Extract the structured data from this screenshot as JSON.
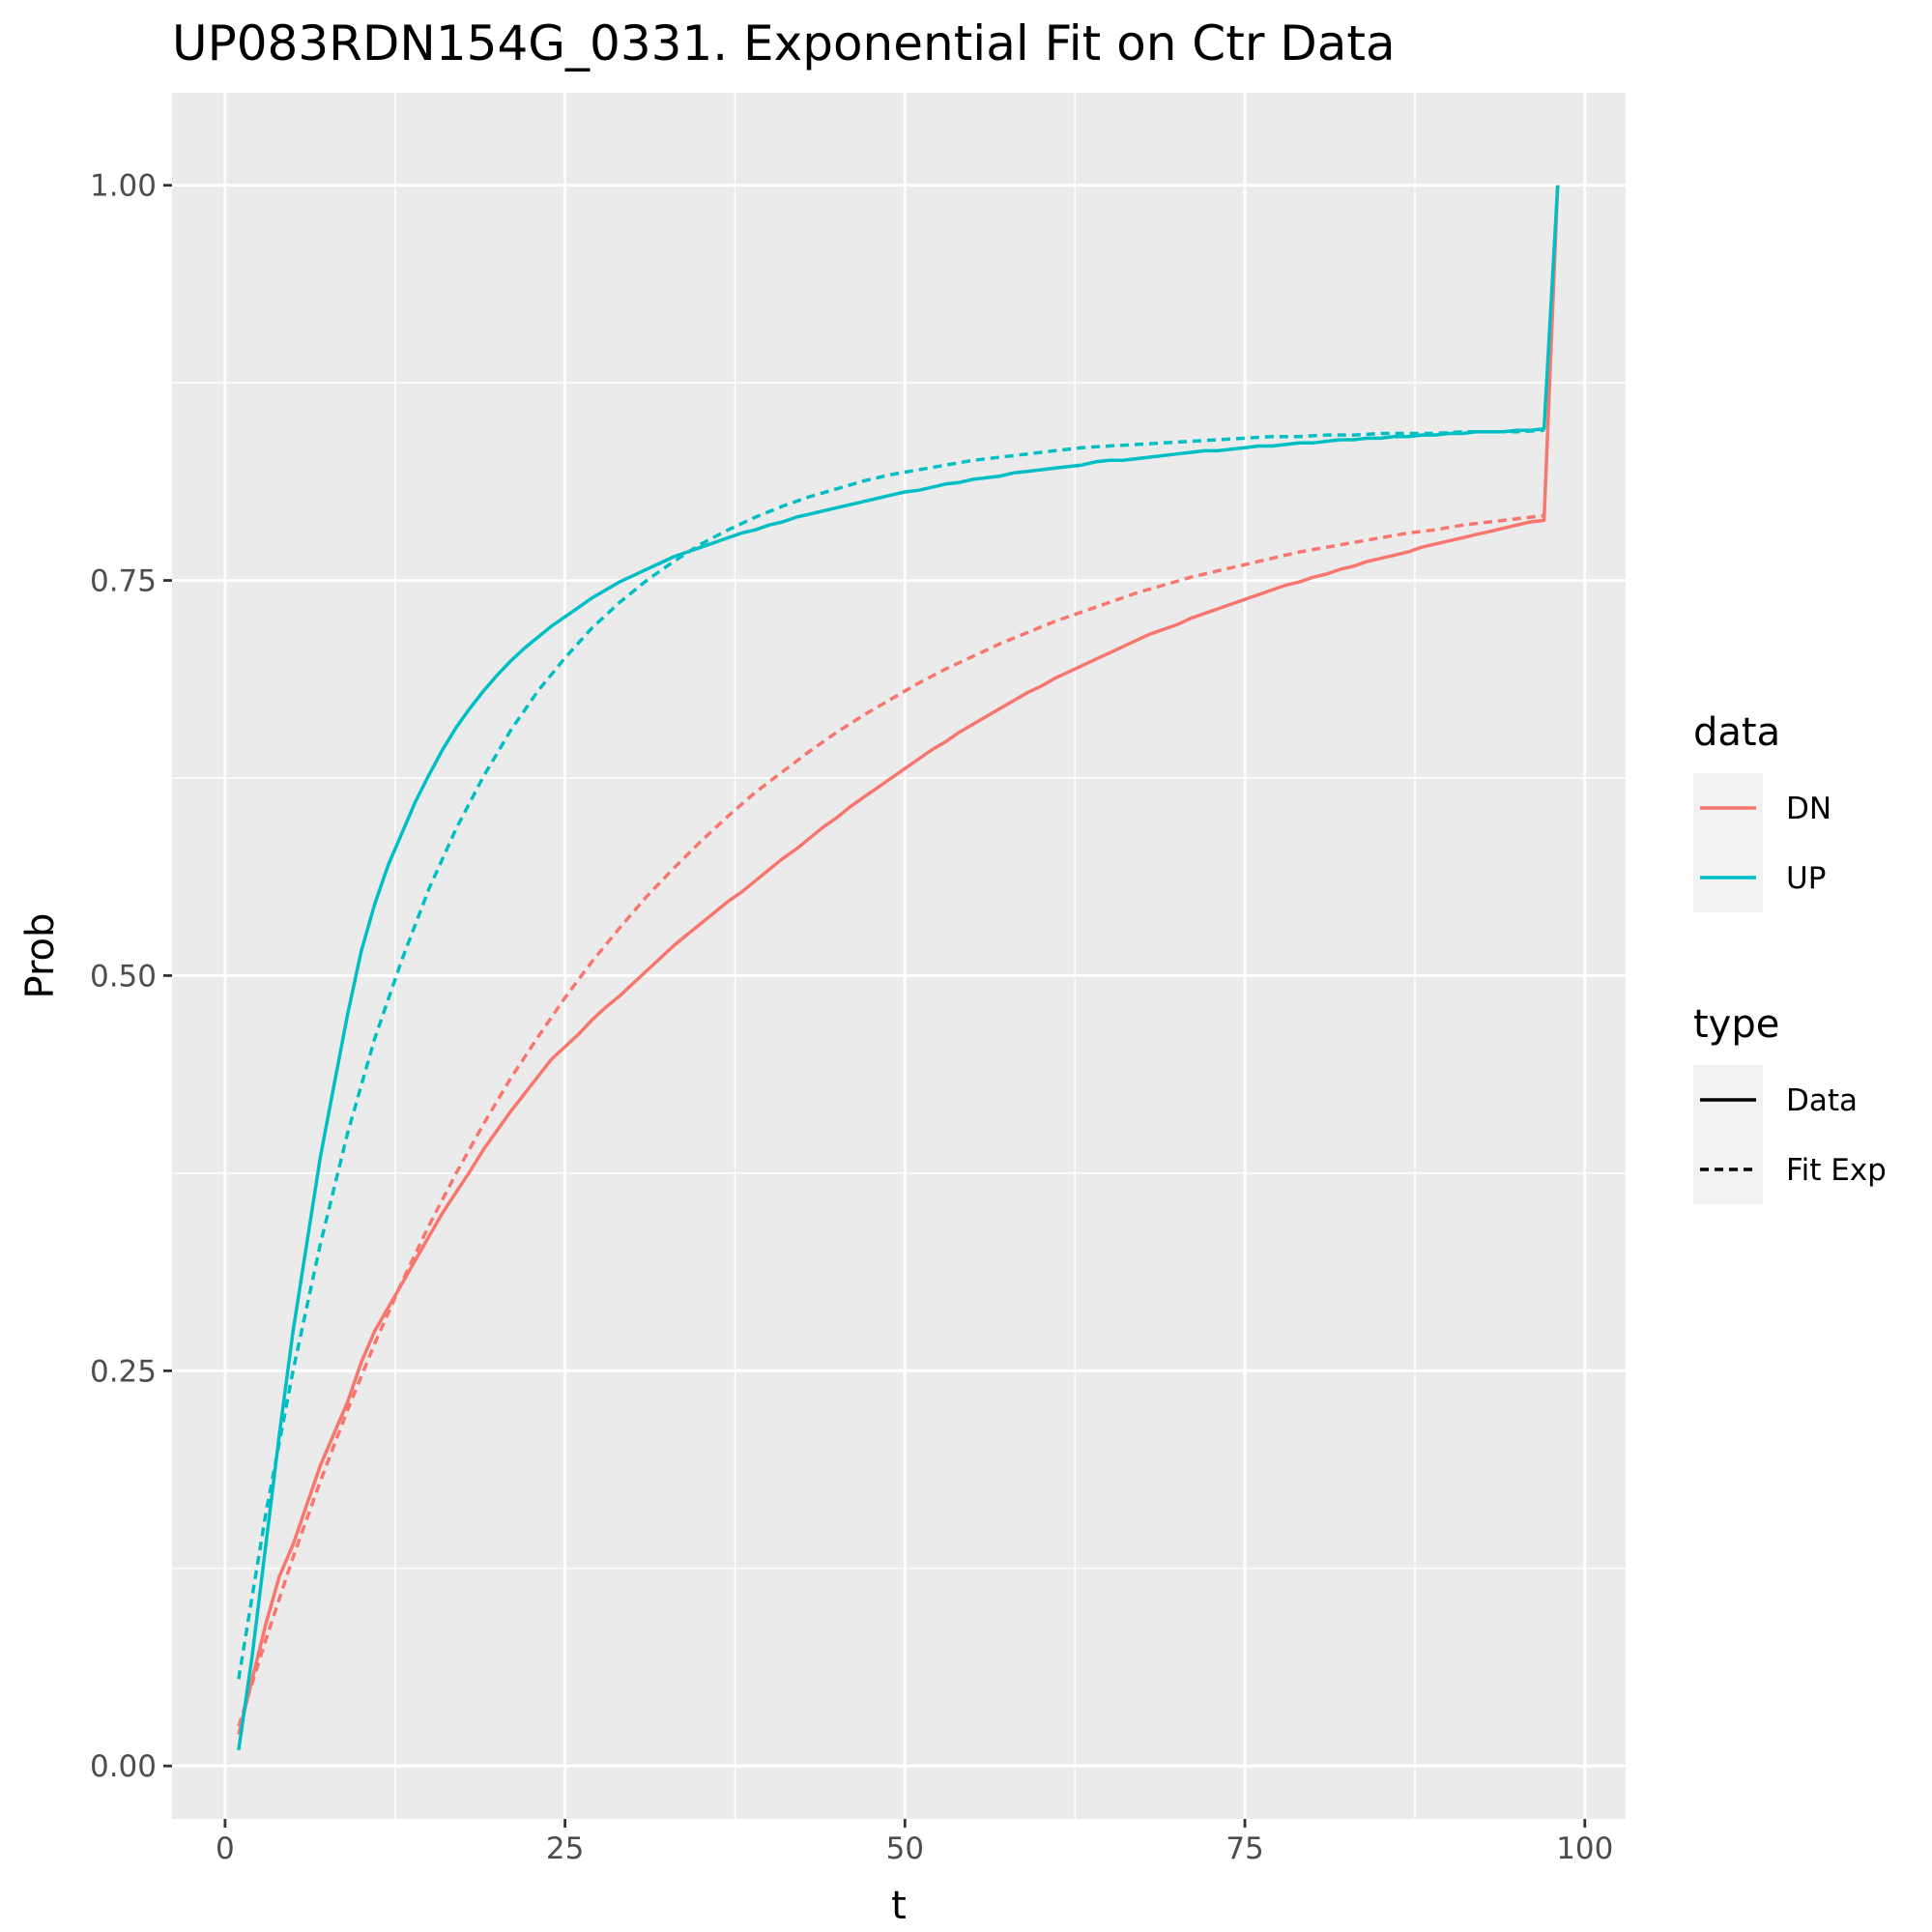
{
  "chart_data": {
    "type": "line",
    "title": "UP083RDN154G_0331. Exponential Fit on Ctr Data",
    "xlabel": "t",
    "ylabel": "Prob",
    "xlim": [
      -3.9,
      103
    ],
    "ylim": [
      -0.0335,
      1.0585
    ],
    "x_ticks": [
      0,
      25,
      50,
      75,
      100
    ],
    "x_tick_labels": [
      "0",
      "25",
      "50",
      "75",
      "100"
    ],
    "y_ticks": [
      0,
      0.25,
      0.5,
      0.75,
      1
    ],
    "y_tick_labels": [
      "0.00",
      "0.25",
      "0.50",
      "0.75",
      "1.00"
    ],
    "grid": true,
    "legend_position": "right",
    "legend": {
      "data": {
        "title": "data",
        "entries": [
          {
            "label": "DN",
            "color": "#F8766D"
          },
          {
            "label": "UP",
            "color": "#00BFC4"
          }
        ]
      },
      "type": {
        "title": "type",
        "entries": [
          {
            "label": "Data",
            "linetype": "solid"
          },
          {
            "label": "Fit Exp",
            "linetype": "dashed"
          }
        ]
      }
    },
    "series": [
      {
        "data": "DN",
        "type": "Data",
        "color": "#F8766D",
        "linetype": "solid",
        "points": [
          [
            1,
            0.02
          ],
          [
            2,
            0.055
          ],
          [
            3,
            0.09
          ],
          [
            4,
            0.12
          ],
          [
            5,
            0.14
          ],
          [
            6,
            0.165
          ],
          [
            7,
            0.19
          ],
          [
            8,
            0.21
          ],
          [
            9,
            0.23
          ],
          [
            10,
            0.255
          ],
          [
            11,
            0.275
          ],
          [
            12,
            0.29
          ],
          [
            13,
            0.305
          ],
          [
            14,
            0.32
          ],
          [
            15,
            0.335
          ],
          [
            16,
            0.35
          ],
          [
            17,
            0.363
          ],
          [
            18,
            0.376
          ],
          [
            19,
            0.39
          ],
          [
            20,
            0.402
          ],
          [
            21,
            0.414
          ],
          [
            22,
            0.425
          ],
          [
            23,
            0.436
          ],
          [
            24,
            0.447
          ],
          [
            25,
            0.455
          ],
          [
            26,
            0.463
          ],
          [
            27,
            0.472
          ],
          [
            28,
            0.48
          ],
          [
            29,
            0.487
          ],
          [
            30,
            0.495
          ],
          [
            31,
            0.503
          ],
          [
            32,
            0.511
          ],
          [
            33,
            0.519
          ],
          [
            34,
            0.526
          ],
          [
            35,
            0.533
          ],
          [
            36,
            0.54
          ],
          [
            37,
            0.547
          ],
          [
            38,
            0.553
          ],
          [
            39,
            0.56
          ],
          [
            40,
            0.567
          ],
          [
            41,
            0.574
          ],
          [
            42,
            0.58
          ],
          [
            43,
            0.587
          ],
          [
            44,
            0.594
          ],
          [
            45,
            0.6
          ],
          [
            46,
            0.607
          ],
          [
            47,
            0.613
          ],
          [
            48,
            0.619
          ],
          [
            49,
            0.625
          ],
          [
            50,
            0.631
          ],
          [
            51,
            0.637
          ],
          [
            52,
            0.643
          ],
          [
            53,
            0.648
          ],
          [
            54,
            0.654
          ],
          [
            55,
            0.659
          ],
          [
            56,
            0.664
          ],
          [
            57,
            0.669
          ],
          [
            58,
            0.674
          ],
          [
            59,
            0.679
          ],
          [
            60,
            0.683
          ],
          [
            61,
            0.688
          ],
          [
            62,
            0.692
          ],
          [
            63,
            0.696
          ],
          [
            64,
            0.7
          ],
          [
            65,
            0.704
          ],
          [
            66,
            0.708
          ],
          [
            67,
            0.712
          ],
          [
            68,
            0.716
          ],
          [
            69,
            0.719
          ],
          [
            70,
            0.722
          ],
          [
            71,
            0.726
          ],
          [
            72,
            0.729
          ],
          [
            73,
            0.732
          ],
          [
            74,
            0.735
          ],
          [
            75,
            0.738
          ],
          [
            76,
            0.741
          ],
          [
            77,
            0.744
          ],
          [
            78,
            0.747
          ],
          [
            79,
            0.749
          ],
          [
            80,
            0.752
          ],
          [
            81,
            0.754
          ],
          [
            82,
            0.757
          ],
          [
            83,
            0.759
          ],
          [
            84,
            0.762
          ],
          [
            85,
            0.764
          ],
          [
            86,
            0.766
          ],
          [
            87,
            0.768
          ],
          [
            88,
            0.771
          ],
          [
            89,
            0.773
          ],
          [
            90,
            0.775
          ],
          [
            91,
            0.777
          ],
          [
            92,
            0.779
          ],
          [
            93,
            0.781
          ],
          [
            94,
            0.783
          ],
          [
            95,
            0.785
          ],
          [
            96,
            0.787
          ],
          [
            97,
            0.788
          ],
          [
            98,
            1.0
          ]
        ]
      },
      {
        "data": "DN",
        "type": "Fit Exp",
        "color": "#F8766D",
        "linetype": "dashed",
        "points": [
          [
            1,
            0.025
          ],
          [
            3,
            0.08
          ],
          [
            5,
            0.132
          ],
          [
            7,
            0.18
          ],
          [
            9,
            0.225
          ],
          [
            11,
            0.267
          ],
          [
            13,
            0.306
          ],
          [
            15,
            0.342
          ],
          [
            17,
            0.375
          ],
          [
            19,
            0.406
          ],
          [
            21,
            0.435
          ],
          [
            23,
            0.461
          ],
          [
            25,
            0.486
          ],
          [
            27,
            0.509
          ],
          [
            29,
            0.53
          ],
          [
            31,
            0.55
          ],
          [
            33,
            0.568
          ],
          [
            35,
            0.585
          ],
          [
            37,
            0.601
          ],
          [
            39,
            0.616
          ],
          [
            41,
            0.629
          ],
          [
            43,
            0.642
          ],
          [
            45,
            0.654
          ],
          [
            47,
            0.665
          ],
          [
            49,
            0.675
          ],
          [
            51,
            0.685
          ],
          [
            53,
            0.694
          ],
          [
            55,
            0.702
          ],
          [
            57,
            0.71
          ],
          [
            59,
            0.717
          ],
          [
            61,
            0.724
          ],
          [
            63,
            0.73
          ],
          [
            65,
            0.736
          ],
          [
            67,
            0.742
          ],
          [
            69,
            0.747
          ],
          [
            71,
            0.752
          ],
          [
            73,
            0.756
          ],
          [
            75,
            0.76
          ],
          [
            77,
            0.764
          ],
          [
            79,
            0.768
          ],
          [
            81,
            0.771
          ],
          [
            83,
            0.774
          ],
          [
            85,
            0.777
          ],
          [
            87,
            0.78
          ],
          [
            89,
            0.782
          ],
          [
            91,
            0.785
          ],
          [
            93,
            0.787
          ],
          [
            95,
            0.789
          ],
          [
            97,
            0.791
          ]
        ]
      },
      {
        "data": "UP",
        "type": "Data",
        "color": "#00BFC4",
        "linetype": "solid",
        "points": [
          [
            1,
            0.01
          ],
          [
            2,
            0.07
          ],
          [
            3,
            0.14
          ],
          [
            4,
            0.21
          ],
          [
            5,
            0.275
          ],
          [
            6,
            0.33
          ],
          [
            7,
            0.385
          ],
          [
            8,
            0.43
          ],
          [
            9,
            0.475
          ],
          [
            10,
            0.515
          ],
          [
            11,
            0.545
          ],
          [
            12,
            0.57
          ],
          [
            13,
            0.59
          ],
          [
            14,
            0.61
          ],
          [
            15,
            0.627
          ],
          [
            16,
            0.643
          ],
          [
            17,
            0.657
          ],
          [
            18,
            0.669
          ],
          [
            19,
            0.68
          ],
          [
            20,
            0.69
          ],
          [
            21,
            0.699
          ],
          [
            22,
            0.707
          ],
          [
            23,
            0.714
          ],
          [
            24,
            0.721
          ],
          [
            25,
            0.727
          ],
          [
            26,
            0.733
          ],
          [
            27,
            0.739
          ],
          [
            28,
            0.744
          ],
          [
            29,
            0.749
          ],
          [
            30,
            0.753
          ],
          [
            31,
            0.757
          ],
          [
            32,
            0.761
          ],
          [
            33,
            0.765
          ],
          [
            34,
            0.768
          ],
          [
            35,
            0.771
          ],
          [
            36,
            0.774
          ],
          [
            37,
            0.777
          ],
          [
            38,
            0.78
          ],
          [
            39,
            0.782
          ],
          [
            40,
            0.785
          ],
          [
            41,
            0.787
          ],
          [
            42,
            0.79
          ],
          [
            43,
            0.792
          ],
          [
            44,
            0.794
          ],
          [
            45,
            0.796
          ],
          [
            46,
            0.798
          ],
          [
            47,
            0.8
          ],
          [
            48,
            0.802
          ],
          [
            49,
            0.804
          ],
          [
            50,
            0.806
          ],
          [
            51,
            0.807
          ],
          [
            52,
            0.809
          ],
          [
            53,
            0.811
          ],
          [
            54,
            0.812
          ],
          [
            55,
            0.814
          ],
          [
            56,
            0.815
          ],
          [
            57,
            0.816
          ],
          [
            58,
            0.818
          ],
          [
            59,
            0.819
          ],
          [
            60,
            0.82
          ],
          [
            61,
            0.821
          ],
          [
            62,
            0.822
          ],
          [
            63,
            0.823
          ],
          [
            64,
            0.825
          ],
          [
            65,
            0.826
          ],
          [
            66,
            0.826
          ],
          [
            67,
            0.827
          ],
          [
            68,
            0.828
          ],
          [
            69,
            0.829
          ],
          [
            70,
            0.83
          ],
          [
            71,
            0.831
          ],
          [
            72,
            0.832
          ],
          [
            73,
            0.832
          ],
          [
            74,
            0.833
          ],
          [
            75,
            0.834
          ],
          [
            76,
            0.835
          ],
          [
            77,
            0.835
          ],
          [
            78,
            0.836
          ],
          [
            79,
            0.837
          ],
          [
            80,
            0.837
          ],
          [
            81,
            0.838
          ],
          [
            82,
            0.839
          ],
          [
            83,
            0.839
          ],
          [
            84,
            0.84
          ],
          [
            85,
            0.84
          ],
          [
            86,
            0.841
          ],
          [
            87,
            0.841
          ],
          [
            88,
            0.842
          ],
          [
            89,
            0.842
          ],
          [
            90,
            0.843
          ],
          [
            91,
            0.843
          ],
          [
            92,
            0.844
          ],
          [
            93,
            0.844
          ],
          [
            94,
            0.844
          ],
          [
            95,
            0.845
          ],
          [
            96,
            0.845
          ],
          [
            97,
            0.846
          ],
          [
            98,
            1.0
          ]
        ]
      },
      {
        "data": "UP",
        "type": "Fit Exp",
        "color": "#00BFC4",
        "linetype": "dashed",
        "points": [
          [
            1,
            0.055
          ],
          [
            3,
            0.16
          ],
          [
            5,
            0.25
          ],
          [
            7,
            0.33
          ],
          [
            9,
            0.4
          ],
          [
            11,
            0.46
          ],
          [
            13,
            0.51
          ],
          [
            15,
            0.555
          ],
          [
            17,
            0.593
          ],
          [
            19,
            0.626
          ],
          [
            21,
            0.655
          ],
          [
            23,
            0.68
          ],
          [
            25,
            0.701
          ],
          [
            27,
            0.72
          ],
          [
            29,
            0.736
          ],
          [
            31,
            0.75
          ],
          [
            33,
            0.762
          ],
          [
            35,
            0.773
          ],
          [
            37,
            0.782
          ],
          [
            39,
            0.79
          ],
          [
            41,
            0.797
          ],
          [
            43,
            0.803
          ],
          [
            45,
            0.808
          ],
          [
            47,
            0.813
          ],
          [
            49,
            0.817
          ],
          [
            51,
            0.82
          ],
          [
            53,
            0.823
          ],
          [
            55,
            0.826
          ],
          [
            57,
            0.828
          ],
          [
            59,
            0.83
          ],
          [
            61,
            0.832
          ],
          [
            63,
            0.834
          ],
          [
            65,
            0.835
          ],
          [
            67,
            0.836
          ],
          [
            69,
            0.837
          ],
          [
            71,
            0.838
          ],
          [
            73,
            0.839
          ],
          [
            75,
            0.84
          ],
          [
            77,
            0.841
          ],
          [
            79,
            0.841
          ],
          [
            81,
            0.842
          ],
          [
            83,
            0.842
          ],
          [
            85,
            0.843
          ],
          [
            87,
            0.843
          ],
          [
            89,
            0.843
          ],
          [
            91,
            0.844
          ],
          [
            93,
            0.844
          ],
          [
            95,
            0.844
          ],
          [
            97,
            0.845
          ]
        ]
      }
    ]
  }
}
